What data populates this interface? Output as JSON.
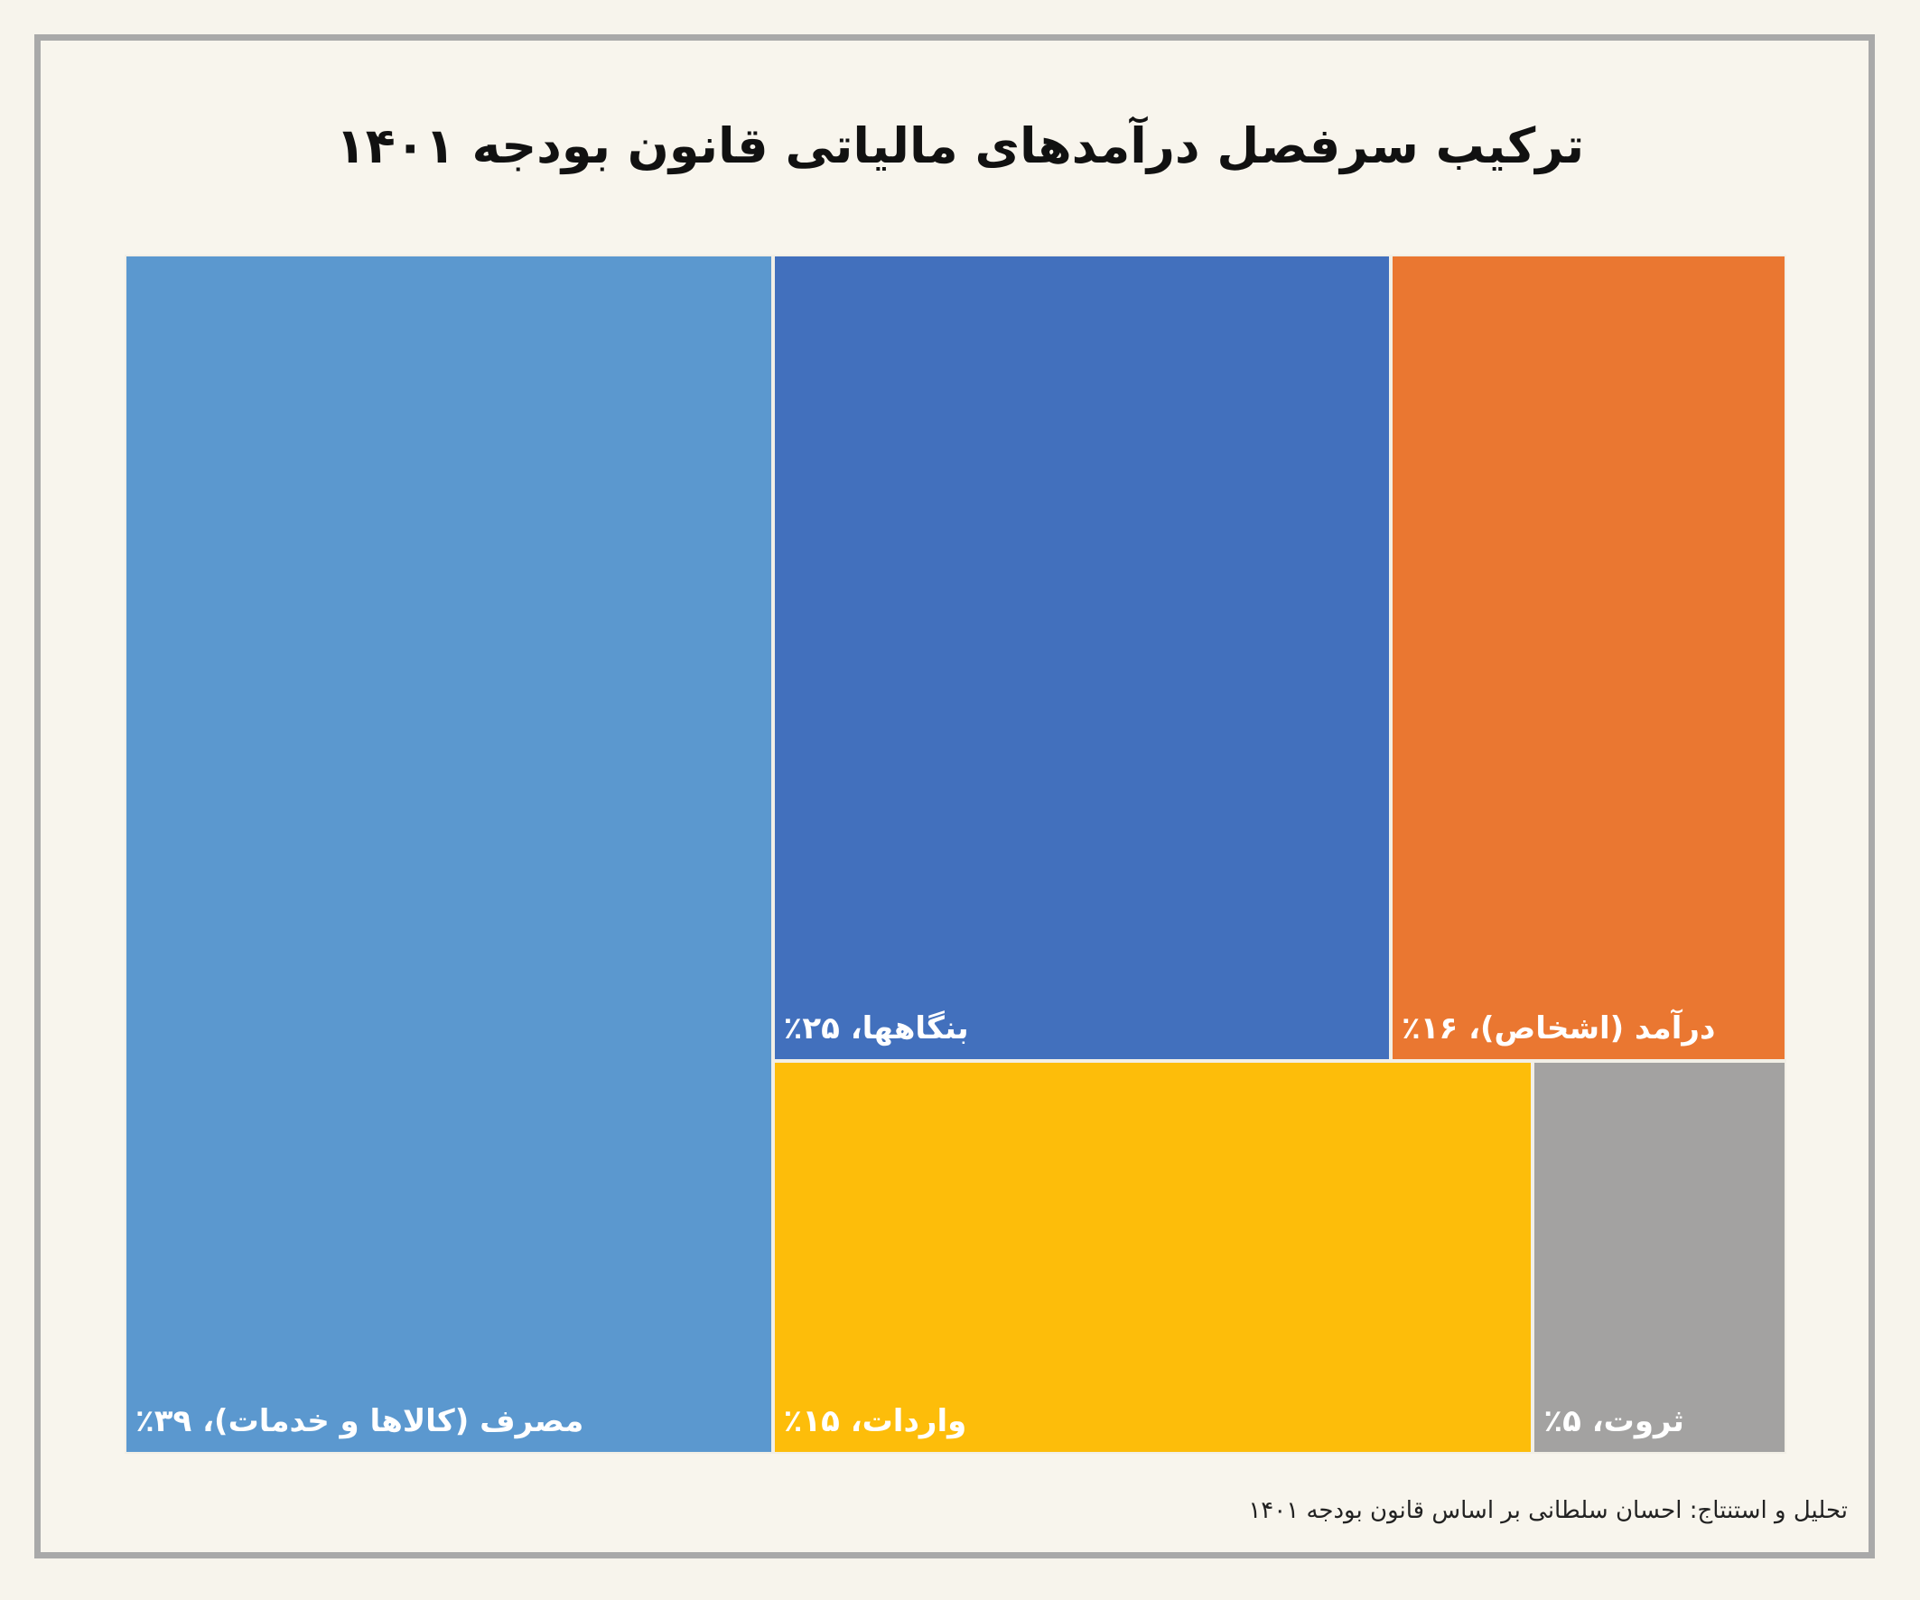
{
  "title": "ترکیب سرفصل درآمدهای مالیاتی قانون بودجه ۱۴۰۱",
  "source": "تحلیل و استنتاج: احسان سلطانی بر اساس قانون بودجه ۱۴۰۱",
  "chart_data": {
    "type": "treemap",
    "title": "ترکیب سرفصل درآمدهای مالیاتی قانون بودجه ۱۴۰۱",
    "unit": "%",
    "items": [
      {
        "label": "مصرف (کالاها و خدمات)، ۳۹٪",
        "value": 39,
        "color": "#5b98cf"
      },
      {
        "label": "بنگاهها، ۲۵٪",
        "value": 25,
        "color": "#4270bd"
      },
      {
        "label": "درآمد (اشخاص)، ۱۶٪",
        "value": 16,
        "color": "#ea7731"
      },
      {
        "label": "واردات، ۱۵٪",
        "value": 15,
        "color": "#fdbd0a"
      },
      {
        "label": "ثروت، ۵٪",
        "value": 5,
        "color": "#a3a2a1"
      }
    ]
  }
}
